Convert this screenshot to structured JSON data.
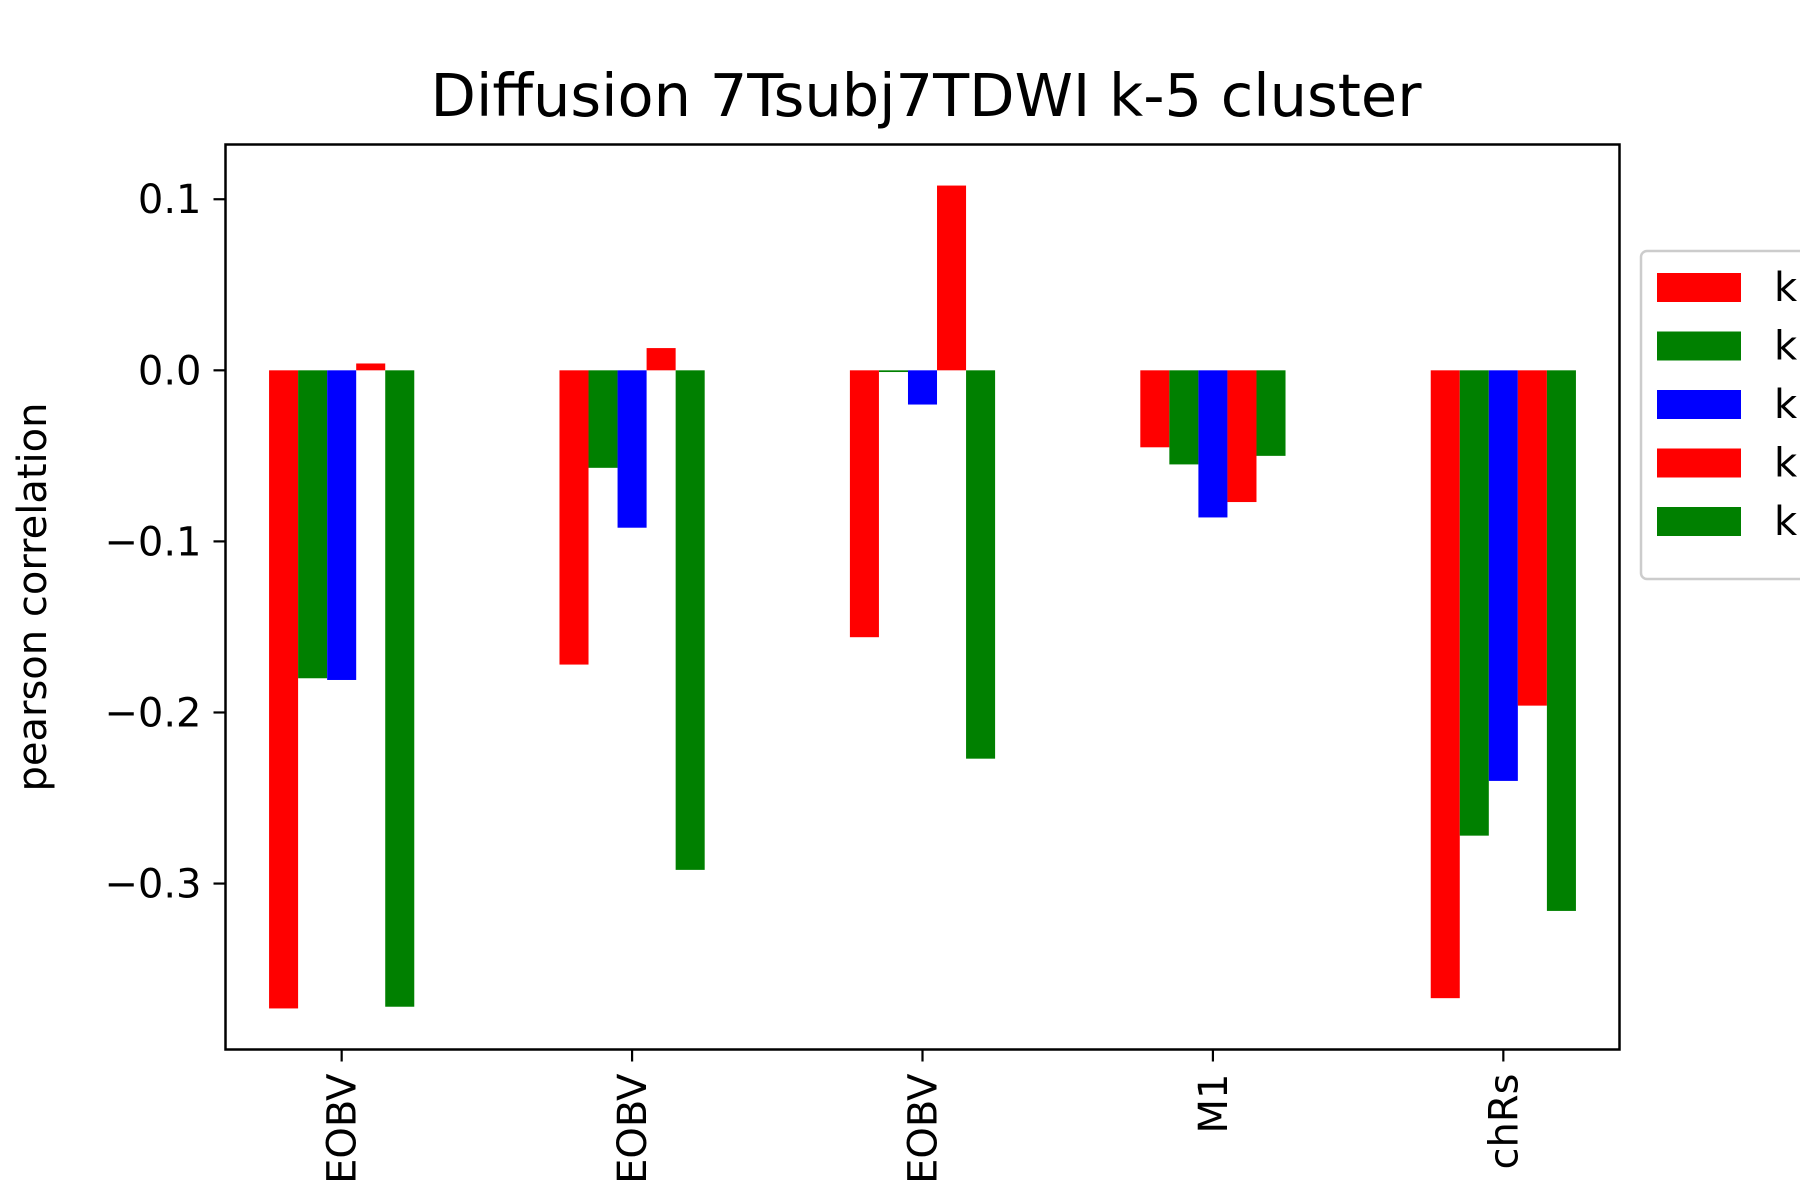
{
  "chart_data": {
    "type": "bar",
    "title": "Diffusion 7Tsubj7TDWI k-5 cluster",
    "xlabel": "",
    "ylabel": "pearson correlation",
    "categories": [
      "EOBV",
      "EOBV",
      "EOBV",
      "M1",
      "chRs"
    ],
    "yticks": [
      0.1,
      0.0,
      -0.1,
      -0.2,
      -0.3
    ],
    "ytick_labels": [
      "0.1",
      "0.0",
      "−0.1",
      "−0.2",
      "−0.3"
    ],
    "ylim": [
      -0.397,
      0.132
    ],
    "grid": false,
    "legend_position": "right",
    "series": [
      {
        "name": "k",
        "color": "#ff0000",
        "values": [
          -0.373,
          -0.172,
          -0.156,
          -0.045,
          -0.367
        ]
      },
      {
        "name": "k",
        "color": "#008000",
        "values": [
          -0.18,
          -0.057,
          -0.001,
          -0.055,
          -0.272
        ]
      },
      {
        "name": "k",
        "color": "#0000ff",
        "values": [
          -0.181,
          -0.092,
          -0.02,
          -0.086,
          -0.24
        ]
      },
      {
        "name": "k",
        "color": "#ff0000",
        "values": [
          0.004,
          0.013,
          0.108,
          -0.077,
          -0.196
        ]
      },
      {
        "name": "k",
        "color": "#008000",
        "values": [
          -0.372,
          -0.292,
          -0.227,
          -0.05,
          -0.316
        ]
      }
    ]
  }
}
